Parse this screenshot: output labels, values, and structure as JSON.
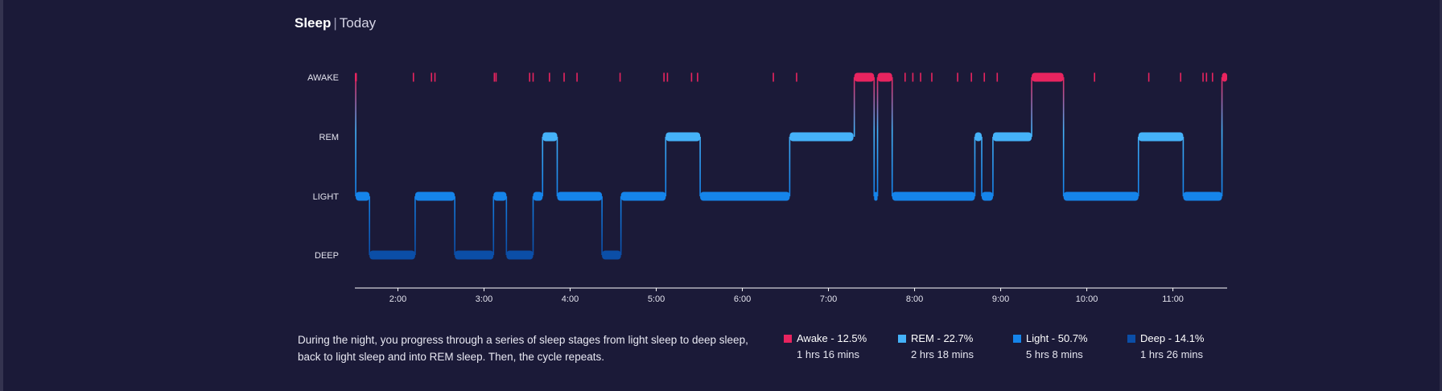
{
  "header": {
    "title": "Sleep",
    "separator": "|",
    "period": "Today"
  },
  "chart_data": {
    "type": "step",
    "stages": [
      "AWAKE",
      "REM",
      "LIGHT",
      "DEEP"
    ],
    "stage_colors": {
      "AWAKE": "#e8245f",
      "REM": "#45b2f9",
      "LIGHT": "#1584ea",
      "DEEP": "#0b4ea7"
    },
    "x_unit": "hours after midnight",
    "xlim": [
      1.5,
      11.63
    ],
    "x_ticks": [
      {
        "v": 2,
        "label": "2:00"
      },
      {
        "v": 3,
        "label": "3:00"
      },
      {
        "v": 4,
        "label": "4:00"
      },
      {
        "v": 5,
        "label": "5:00"
      },
      {
        "v": 6,
        "label": "6:00"
      },
      {
        "v": 7,
        "label": "7:00"
      },
      {
        "v": 8,
        "label": "8:00"
      },
      {
        "v": 9,
        "label": "9:00"
      },
      {
        "v": 10,
        "label": "10:00"
      },
      {
        "v": 11,
        "label": "11:00"
      }
    ],
    "segments": [
      {
        "stage": "AWAKE",
        "start": 1.5,
        "end": 1.51
      },
      {
        "stage": "LIGHT",
        "start": 1.51,
        "end": 1.67
      },
      {
        "stage": "DEEP",
        "start": 1.67,
        "end": 2.2
      },
      {
        "stage": "LIGHT",
        "start": 2.2,
        "end": 2.66
      },
      {
        "stage": "DEEP",
        "start": 2.66,
        "end": 3.11
      },
      {
        "stage": "LIGHT",
        "start": 3.11,
        "end": 3.26
      },
      {
        "stage": "DEEP",
        "start": 3.26,
        "end": 3.57
      },
      {
        "stage": "LIGHT",
        "start": 3.57,
        "end": 3.68
      },
      {
        "stage": "REM",
        "start": 3.68,
        "end": 3.85
      },
      {
        "stage": "LIGHT",
        "start": 3.85,
        "end": 4.37
      },
      {
        "stage": "DEEP",
        "start": 4.37,
        "end": 4.59
      },
      {
        "stage": "LIGHT",
        "start": 4.59,
        "end": 5.11
      },
      {
        "stage": "REM",
        "start": 5.11,
        "end": 5.51
      },
      {
        "stage": "LIGHT",
        "start": 5.51,
        "end": 6.55
      },
      {
        "stage": "REM",
        "start": 6.55,
        "end": 7.29
      },
      {
        "stage": "AWAKE",
        "start": 7.3,
        "end": 7.53
      },
      {
        "stage": "LIGHT",
        "start": 7.53,
        "end": 7.57
      },
      {
        "stage": "AWAKE",
        "start": 7.57,
        "end": 7.74
      },
      {
        "stage": "LIGHT",
        "start": 7.74,
        "end": 8.7
      },
      {
        "stage": "REM",
        "start": 8.7,
        "end": 8.78
      },
      {
        "stage": "LIGHT",
        "start": 8.78,
        "end": 8.91
      },
      {
        "stage": "REM",
        "start": 8.91,
        "end": 9.36
      },
      {
        "stage": "AWAKE",
        "start": 9.36,
        "end": 9.73
      },
      {
        "stage": "LIGHT",
        "start": 9.73,
        "end": 10.6
      },
      {
        "stage": "REM",
        "start": 10.6,
        "end": 11.12
      },
      {
        "stage": "LIGHT",
        "start": 11.12,
        "end": 11.57
      },
      {
        "stage": "AWAKE",
        "start": 11.57,
        "end": 11.63
      }
    ],
    "awake_blips": [
      2.18,
      2.39,
      2.43,
      3.12,
      3.14,
      3.53,
      3.57,
      3.76,
      3.93,
      4.08,
      4.58,
      5.09,
      5.13,
      5.41,
      5.48,
      6.36,
      6.63,
      7.89,
      7.98,
      8.07,
      8.2,
      8.5,
      8.66,
      8.81,
      8.96,
      10.09,
      10.72,
      11.09,
      11.35,
      11.39,
      11.46
    ]
  },
  "description": "During the night, you progress through a series of sleep stages from light sleep to deep sleep, back to light sleep and into REM sleep. Then, the cycle repeats.",
  "legend": [
    {
      "label": "Awake - 12.5%",
      "duration": "1 hrs 16 mins",
      "color": "#e8245f"
    },
    {
      "label": "REM - 22.7%",
      "duration": "2 hrs 18 mins",
      "color": "#45b2f9"
    },
    {
      "label": "Light - 50.7%",
      "duration": "5 hrs 8 mins",
      "color": "#1584ea"
    },
    {
      "label": "Deep - 14.1%",
      "duration": "1 hrs 26 mins",
      "color": "#0b4ea7"
    }
  ]
}
